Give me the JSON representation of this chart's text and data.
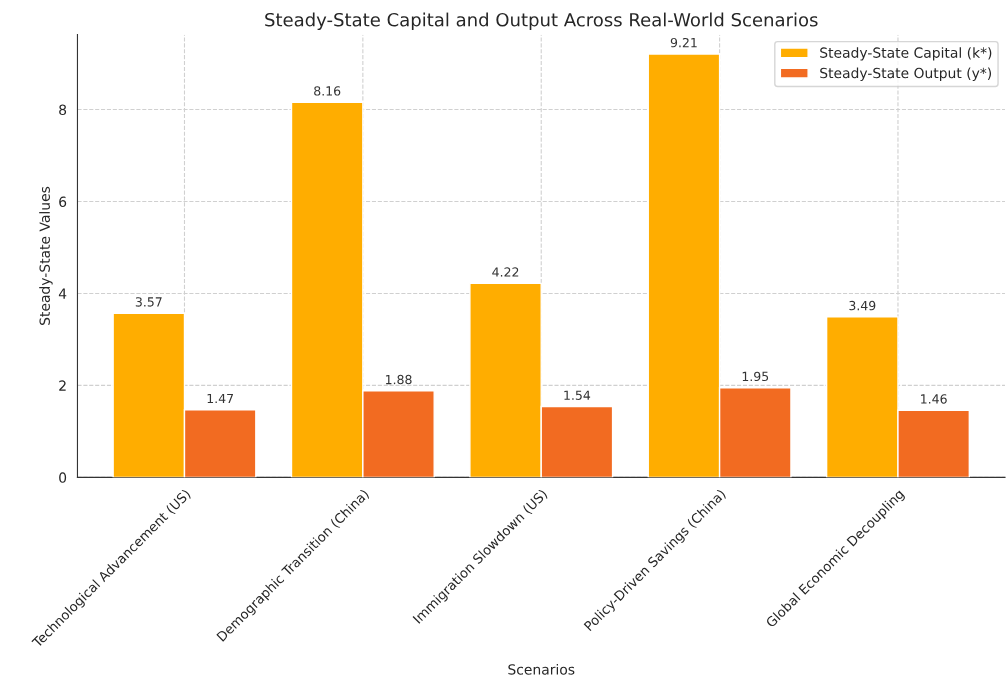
{
  "chart_data": {
    "type": "bar",
    "title": "Steady-State Capital and Output Across Real-World Scenarios",
    "xlabel": "Scenarios",
    "ylabel": "Steady-State Values",
    "categories": [
      "Technological Advancement (US)",
      "Demographic Transition (China)",
      "Immigration Slowdown (US)",
      "Policy-Driven Savings (China)",
      "Global Economic Decoupling"
    ],
    "series": [
      {
        "name": "Steady-State Capital (k*)",
        "color": "#ffad00",
        "values": [
          3.57,
          8.16,
          4.22,
          9.21,
          3.49
        ]
      },
      {
        "name": "Steady-State Output (y*)",
        "color": "#f26b21",
        "values": [
          1.47,
          1.88,
          1.54,
          1.95,
          1.46
        ]
      }
    ],
    "ylim": [
      0,
      9.63
    ],
    "yticks": [
      0,
      2,
      4,
      6,
      8
    ],
    "grid": true,
    "legend": "top right",
    "data_labels": true
  }
}
